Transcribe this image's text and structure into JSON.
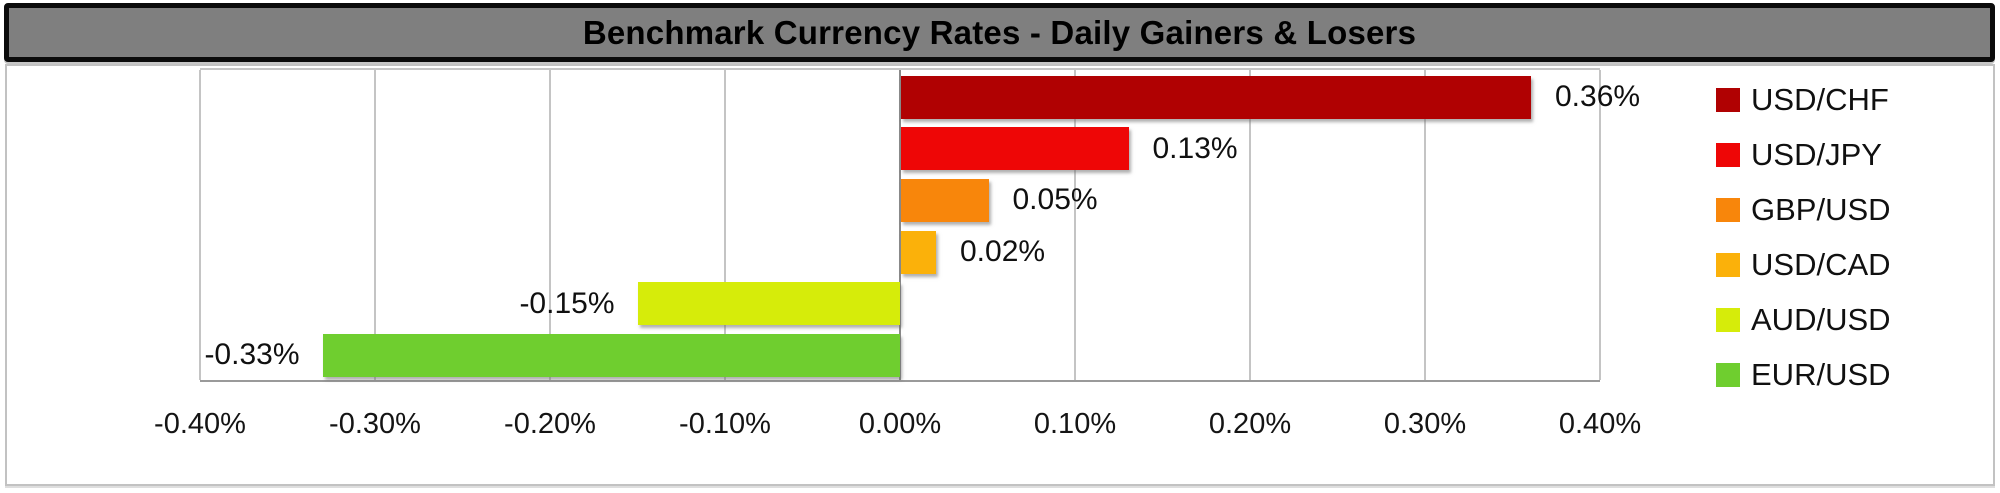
{
  "title_bar": {
    "text": "Benchmark Currency Rates - Daily Gainers & Losers"
  },
  "chart_data": {
    "type": "bar",
    "orientation": "horizontal",
    "title": "Benchmark Currency Rates - Daily Gainers & Losers",
    "categories": [
      "USD/CHF",
      "USD/JPY",
      "GBP/USD",
      "USD/CAD",
      "AUD/USD",
      "EUR/USD"
    ],
    "values": [
      0.36,
      0.13,
      0.05,
      0.02,
      -0.15,
      -0.33
    ],
    "data_labels": [
      "0.36%",
      "0.13%",
      "0.05%",
      "0.02%",
      "-0.15%",
      "-0.33%"
    ],
    "bar_colors": [
      "#B00102",
      "#EE0606",
      "#F8860B",
      "#FBB10A",
      "#D6EC0A",
      "#6FCE2F"
    ],
    "x_ticks": [
      "-0.40%",
      "-0.30%",
      "-0.20%",
      "-0.10%",
      "0.00%",
      "0.10%",
      "0.20%",
      "0.30%",
      "0.40%"
    ],
    "xlim": [
      -0.4,
      0.4
    ],
    "x_tick_step": 0.1,
    "grid": true,
    "xlabel": "",
    "ylabel": "",
    "legend_position": "right",
    "legend": {
      "items": [
        {
          "label": "USD/CHF",
          "color": "#B00102"
        },
        {
          "label": "USD/JPY",
          "color": "#EE0606"
        },
        {
          "label": "GBP/USD",
          "color": "#F8860B"
        },
        {
          "label": "USD/CAD",
          "color": "#FBB10A"
        },
        {
          "label": "AUD/USD",
          "color": "#D6EC0A"
        },
        {
          "label": "EUR/USD",
          "color": "#6FCE2F"
        }
      ]
    }
  },
  "colors": {
    "title_bg": "#7F7F7F",
    "title_border": "#0B0B0B",
    "gridline": "#C4C4C4",
    "zero_axis": "#8A8A8A",
    "frame_border": "#C2C2C2",
    "background": "#FFFFFF"
  }
}
